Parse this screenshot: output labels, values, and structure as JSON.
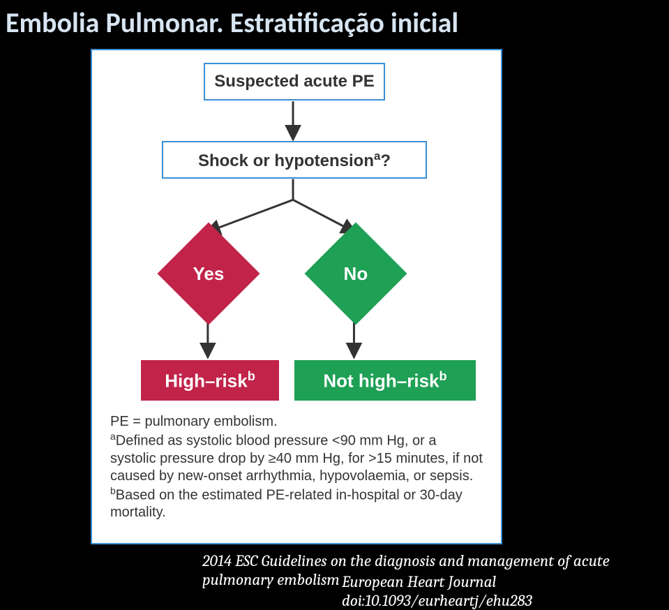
{
  "title": "Embolia Pulmonar. Estratificação inicial",
  "citation_line1": "2014 ESC Guidelines on the diagnosis and management of acute pulmonary embolism",
  "citation_line2": "European Heart Journal doi:10.1093/eurheartj/ehu283",
  "flowchart": {
    "type": "flowchart",
    "border_color": "#3a8fd4",
    "background_color": "#ffffff",
    "text_color": "#333333",
    "yes_color": "#c12349",
    "no_color": "#1ea055",
    "node_start": {
      "label": "Suspected acute PE",
      "fontsize": 24,
      "fontweight": "bold"
    },
    "node_question": {
      "label_html": "Shock or hypotension<sup>a</sup>?",
      "fontsize": 24,
      "fontweight": "bold"
    },
    "decision_yes": {
      "label": "Yes",
      "color": "#c12349",
      "text_color": "#ffffff"
    },
    "decision_no": {
      "label": "No",
      "color": "#1ea055",
      "text_color": "#ffffff"
    },
    "result_high": {
      "label_html": "High–risk<sup>b</sup>",
      "color": "#c12349",
      "text_color": "#ffffff"
    },
    "result_not_high": {
      "label_html": "Not high–risk<sup>b</sup>",
      "color": "#1ea055",
      "text_color": "#ffffff"
    }
  },
  "footnotes": {
    "abbrev": "PE = pulmonary embolism.",
    "note_a": "Defined as systolic blood pressure <90 mm Hg, or a systolic pressure drop by ≥40 mm Hg, for >15 minutes, if not caused by new-onset arrhythmia, hypovolaemia, or sepsis.",
    "note_b": "Based on the estimated PE-related in-hospital or 30-day mortality.",
    "fontsize": 20,
    "color": "#333333"
  },
  "colors": {
    "page_background": "#000000",
    "title_color": "#d7e4f1",
    "citation_color": "#ffffff"
  }
}
